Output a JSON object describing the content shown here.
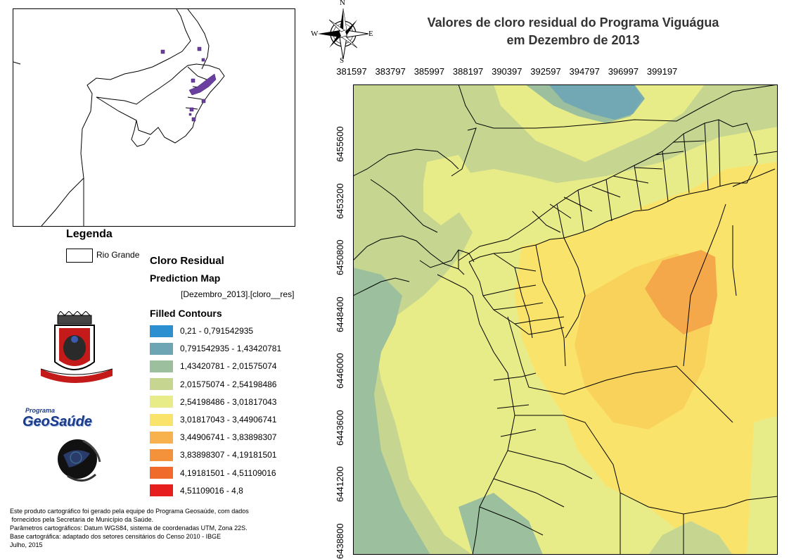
{
  "title": {
    "line1": "Valores de cloro residual do Programa Viguágua",
    "line2": "em Dezembro de 2013"
  },
  "compass": {
    "n": "N",
    "s": "S",
    "e": "E",
    "w": "W"
  },
  "x_ticks": [
    "381597",
    "383797",
    "385997",
    "388197",
    "390397",
    "392597",
    "394797",
    "396997",
    "399197"
  ],
  "y_ticks": [
    "6455600",
    "6453200",
    "6450800",
    "6448400",
    "6446000",
    "6443600",
    "6441200",
    "6438800"
  ],
  "legend": {
    "title": "Legenda",
    "rio_grande": "Rio Grande",
    "layer_title": "Cloro Residual",
    "prediction": "Prediction Map",
    "field": "[Dezembro_2013].[cloro__res]",
    "filled": "Filled Contours",
    "classes": [
      {
        "label": "0,21 - 0,791542935",
        "color": "#2b8fd0"
      },
      {
        "label": "0,791542935 - 1,43420781",
        "color": "#6ea5b5"
      },
      {
        "label": "1,43420781 - 2,01575074",
        "color": "#9cc09e"
      },
      {
        "label": "2,01575074 - 2,54198486",
        "color": "#c6d690"
      },
      {
        "label": "2,54198486 - 3,01817043",
        "color": "#e8ec88"
      },
      {
        "label": "3,01817043 - 3,44906741",
        "color": "#fae36a"
      },
      {
        "label": "3,44906741 - 3,83898307",
        "color": "#f7b24e"
      },
      {
        "label": "3,83898307 - 4,19181501",
        "color": "#f4923c"
      },
      {
        "label": "4,19181501 - 4,51109016",
        "color": "#f06a2c"
      },
      {
        "label": "4,51109016 - 4,8",
        "color": "#e61e1e"
      }
    ]
  },
  "logos": {
    "program_small": "Programa",
    "program_name": "GeoSaúde"
  },
  "credits": [
    "Este produto cartográfico foi gerado pela equipe do Programa Geosaúde, com dados",
    " fornecidos pela Secretaria de Município da Saúde.",
    "Parâmetros cartográficos: Datum WGS84, sistema de coordenadas UTM, Zona 22S.",
    "Base cartográfica: adaptado dos setores censitários do Censo 2010 - IBGE",
    "Julho, 2015"
  ]
}
